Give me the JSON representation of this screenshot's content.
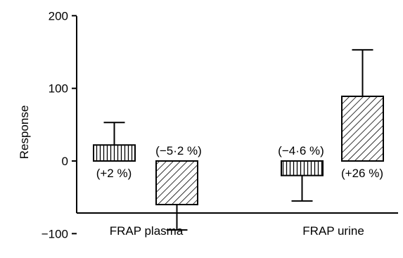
{
  "chart_data": {
    "type": "bar",
    "ylabel": "Response",
    "ylim": [
      -100,
      200
    ],
    "yticks": [
      -100,
      0,
      100,
      200
    ],
    "yticklabels": [
      "−100",
      "0",
      "100",
      "200"
    ],
    "grid": false,
    "categories": [
      "FRAP plasma",
      "FRAP urine"
    ],
    "bars": [
      {
        "group": 0,
        "pattern": "vertical-hatch",
        "value": 22,
        "error_high": 53,
        "annotation": "(+2 %)"
      },
      {
        "group": 0,
        "pattern": "diagonal-hatch",
        "value": -60,
        "error_low": -95,
        "annotation": "(−5·2 %)"
      },
      {
        "group": 1,
        "pattern": "vertical-hatch",
        "value": -20,
        "error_low": -55,
        "annotation": "(−4·6 %)"
      },
      {
        "group": 1,
        "pattern": "diagonal-hatch",
        "value": 89,
        "error_high": 153,
        "annotation": "(+26 %)"
      }
    ]
  }
}
